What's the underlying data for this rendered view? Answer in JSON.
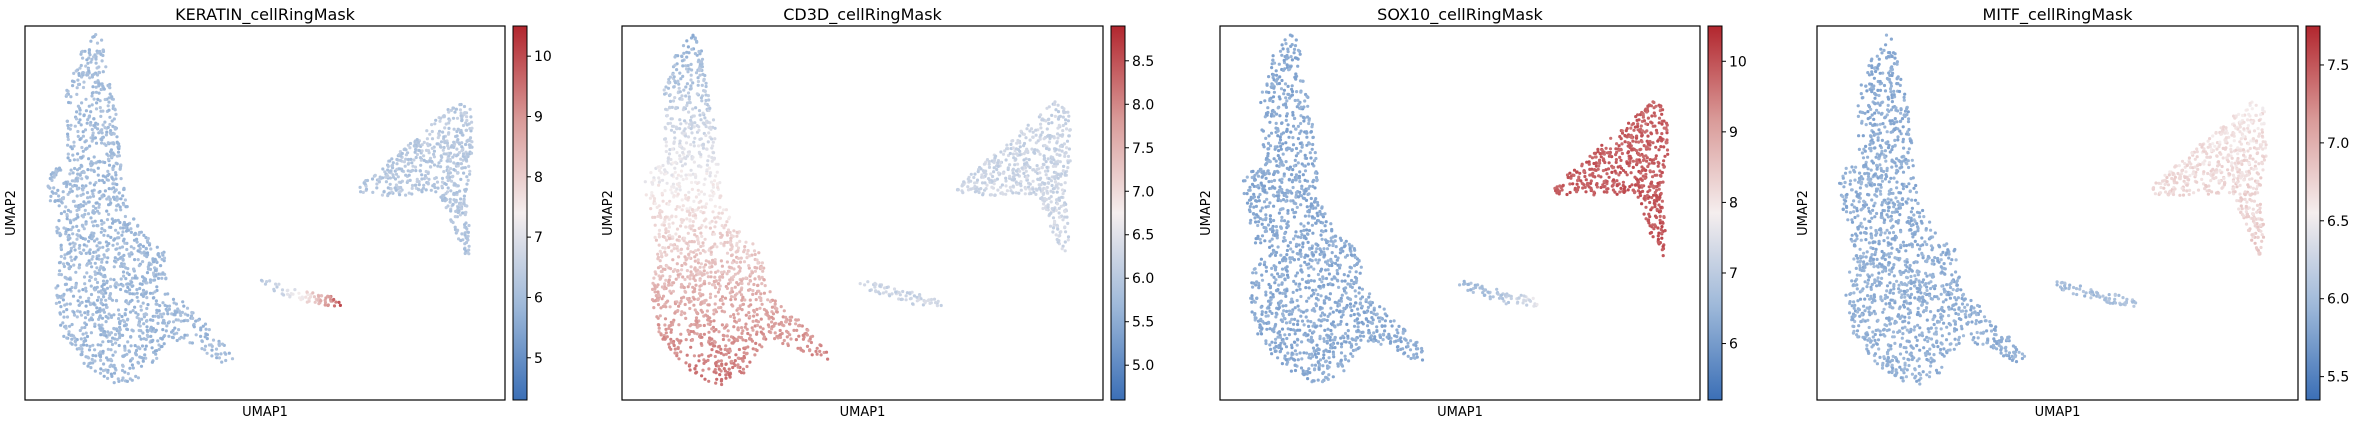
{
  "chart_data": [
    {
      "type": "scatter",
      "title": "KERATIN_cellRingMask",
      "xlabel": "UMAP1",
      "ylabel": "UMAP2",
      "colormap": [
        "#3b6fb6",
        "#9db8d9",
        "#f5eeee",
        "#d99a98",
        "#b2262e"
      ],
      "colorbar": {
        "vmin": 4.3,
        "vmax": 10.5,
        "ticks": [
          "5",
          "6",
          "7",
          "8",
          "9",
          "10"
        ]
      },
      "regions": [
        {
          "name": "left-cluster",
          "value_top": 6.0,
          "value_bottom": 5.9
        },
        {
          "name": "right-cluster",
          "value_top": 6.4,
          "value_bottom": 6.2
        },
        {
          "name": "small-streak",
          "value_start": 6.5,
          "value_end": 10.3
        }
      ]
    },
    {
      "type": "scatter",
      "title": "CD3D_cellRingMask",
      "xlabel": "UMAP1",
      "ylabel": "UMAP2",
      "colormap": [
        "#3b6fb6",
        "#9db8d9",
        "#f5eeee",
        "#d99a98",
        "#b2262e"
      ],
      "colorbar": {
        "vmin": 4.6,
        "vmax": 8.9,
        "ticks": [
          "5.0",
          "5.5",
          "6.0",
          "6.5",
          "7.0",
          "7.5",
          "8.0",
          "8.5"
        ]
      },
      "regions": [
        {
          "name": "left-cluster",
          "value_top": 5.6,
          "value_bottom": 8.2
        },
        {
          "name": "right-cluster",
          "value_top": 6.2,
          "value_bottom": 6.3
        },
        {
          "name": "small-streak",
          "value_start": 6.2,
          "value_end": 6.3
        }
      ]
    },
    {
      "type": "scatter",
      "title": "SOX10_cellRingMask",
      "xlabel": "UMAP1",
      "ylabel": "UMAP2",
      "colormap": [
        "#3b6fb6",
        "#9db8d9",
        "#f5eeee",
        "#d99a98",
        "#b2262e"
      ],
      "colorbar": {
        "vmin": 5.2,
        "vmax": 10.5,
        "ticks": [
          "6",
          "7",
          "8",
          "9",
          "10"
        ]
      },
      "regions": [
        {
          "name": "left-cluster",
          "value_top": 6.3,
          "value_bottom": 6.3
        },
        {
          "name": "right-cluster",
          "value_top": 9.8,
          "value_bottom": 10.0
        },
        {
          "name": "small-streak",
          "value_start": 6.6,
          "value_end": 7.6
        }
      ]
    },
    {
      "type": "scatter",
      "title": "MITF_cellRingMask",
      "xlabel": "UMAP1",
      "ylabel": "UMAP2",
      "colormap": [
        "#3b6fb6",
        "#9db8d9",
        "#f5eeee",
        "#d99a98",
        "#b2262e"
      ],
      "colorbar": {
        "vmin": 5.35,
        "vmax": 7.75,
        "ticks": [
          "5.5",
          "6.0",
          "6.5",
          "7.0",
          "7.5"
        ]
      },
      "regions": [
        {
          "name": "left-cluster",
          "value_top": 5.85,
          "value_bottom": 5.9
        },
        {
          "name": "right-cluster",
          "value_top": 6.6,
          "value_bottom": 6.8
        },
        {
          "name": "small-streak",
          "value_start": 6.0,
          "value_end": 6.1
        }
      ]
    }
  ]
}
